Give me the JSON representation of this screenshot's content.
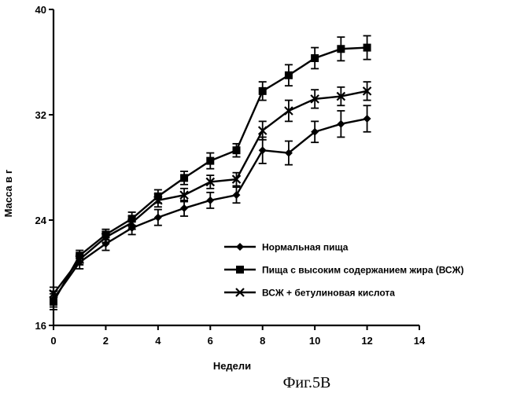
{
  "chart_data": {
    "type": "line",
    "xlabel": "Недели",
    "ylabel": "Масса в г",
    "xlim": [
      0,
      14
    ],
    "ylim": [
      16,
      40
    ],
    "xticks": [
      0,
      2,
      4,
      6,
      8,
      10,
      12,
      14
    ],
    "yticks": [
      16,
      24,
      32,
      40
    ],
    "legend_position": "bottom-right",
    "grid": false,
    "x": [
      0,
      1,
      2,
      3,
      4,
      5,
      6,
      7,
      8,
      9,
      10,
      11,
      12
    ],
    "series": [
      {
        "name": "Нормальная пища",
        "marker": "diamond",
        "values": [
          18.0,
          20.8,
          22.2,
          23.4,
          24.2,
          24.9,
          25.5,
          25.9,
          29.3,
          29.1,
          30.7,
          31.3,
          31.7
        ],
        "errors": [
          0.6,
          0.5,
          0.5,
          0.5,
          0.6,
          0.6,
          0.6,
          0.6,
          1.0,
          0.9,
          0.8,
          1.0,
          1.0
        ]
      },
      {
        "name": "Пища с высоким содержанием жира (ВСЖ)",
        "marker": "square",
        "values": [
          17.8,
          21.3,
          22.9,
          24.1,
          25.8,
          27.2,
          28.5,
          29.3,
          33.8,
          35.0,
          36.3,
          37.0,
          37.1
        ],
        "errors": [
          0.6,
          0.4,
          0.4,
          0.5,
          0.5,
          0.5,
          0.6,
          0.5,
          0.7,
          0.8,
          0.8,
          0.9,
          0.9
        ]
      },
      {
        "name": "ВСЖ + бетулиновая кислота",
        "marker": "x",
        "values": [
          18.4,
          21.0,
          22.7,
          23.8,
          25.5,
          25.9,
          26.9,
          27.1,
          30.8,
          32.3,
          33.2,
          33.4,
          33.8
        ],
        "errors": [
          0.5,
          0.4,
          0.4,
          0.5,
          0.5,
          0.5,
          0.5,
          0.5,
          0.7,
          0.8,
          0.7,
          0.7,
          0.7
        ]
      }
    ]
  },
  "caption": "Фиг.5B"
}
